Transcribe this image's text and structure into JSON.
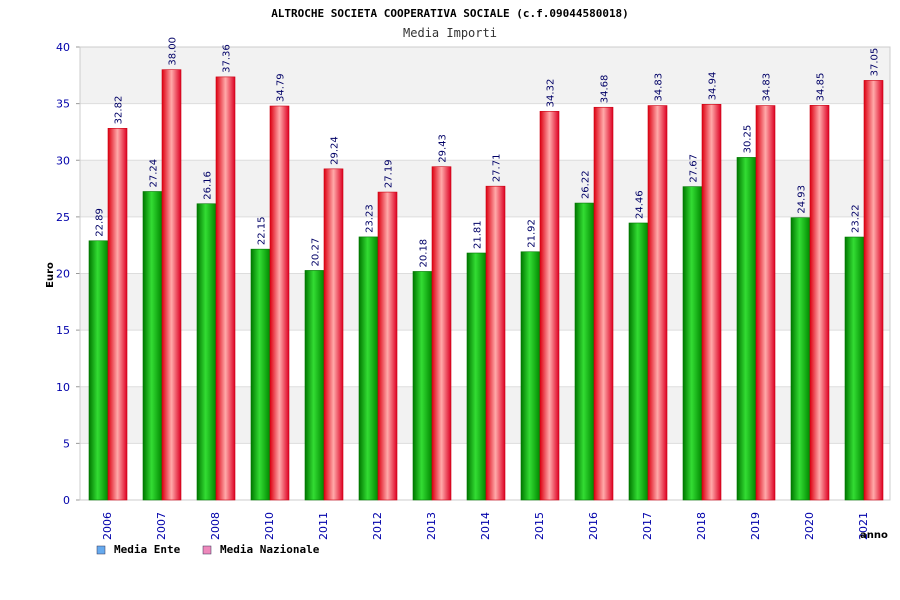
{
  "chart_data": {
    "type": "bar",
    "title": "ALTROCHE SOCIETA COOPERATIVA SOCIALE (c.f.09044580018)",
    "subtitle": "Media Importi",
    "xlabel": "anno",
    "ylabel": "Euro",
    "ylim": [
      0,
      40
    ],
    "yticks": [
      "0",
      "5",
      "10",
      "15",
      "20",
      "25",
      "30",
      "35",
      "40"
    ],
    "categories": [
      "2006",
      "2007",
      "2008",
      "2010",
      "2011",
      "2012",
      "2013",
      "2014",
      "2015",
      "2016",
      "2017",
      "2018",
      "2019",
      "2020",
      "2021"
    ],
    "series": [
      {
        "name": "Media Ente",
        "values": [
          22.89,
          27.24,
          26.16,
          22.15,
          20.27,
          23.23,
          20.18,
          21.81,
          21.92,
          26.22,
          24.46,
          27.67,
          30.25,
          24.93,
          23.22
        ],
        "labels": [
          "22.89",
          "27.24",
          "26.16",
          "22.15",
          "20.27",
          "23.23",
          "20.18",
          "21.81",
          "21.92",
          "26.22",
          "24.46",
          "27.67",
          "30.25",
          "24.93",
          "23.22"
        ]
      },
      {
        "name": "Media Nazionale",
        "values": [
          32.82,
          38.0,
          37.36,
          34.79,
          29.24,
          27.19,
          29.43,
          27.71,
          34.32,
          34.68,
          34.83,
          34.94,
          34.83,
          34.85,
          37.05
        ],
        "labels": [
          "32.82",
          "38.00",
          "37.36",
          "34.79",
          "29.24",
          "27.19",
          "29.43",
          "27.71",
          "34.32",
          "34.68",
          "34.83",
          "34.94",
          "34.83",
          "34.85",
          "37.05"
        ]
      }
    ],
    "legend": "bottom-left"
  },
  "colors": {
    "ente": "#009900",
    "ente_light": "#33dd33",
    "naz": "#ee0022",
    "naz_light": "#ff9999",
    "legend_ente": "#66aaee",
    "legend_naz": "#ee88bb",
    "band": "#f2f2f2"
  }
}
